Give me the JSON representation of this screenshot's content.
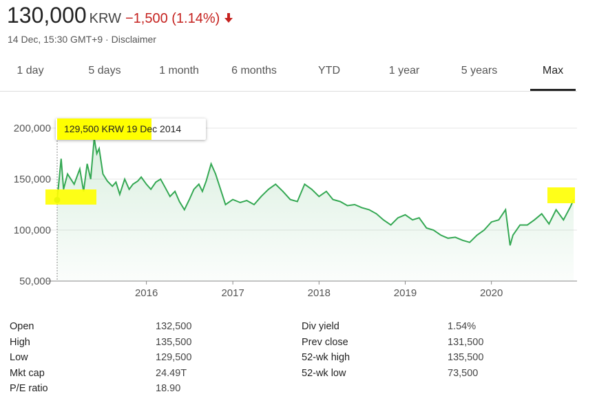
{
  "header": {
    "price": "130,000",
    "currency": "KRW",
    "change": "−1,500 (1.14%)",
    "timestamp": "14 Dec, 15:30 GMT+9",
    "separator": "·",
    "disclaimer": "Disclaimer",
    "down_color": "#c5221f"
  },
  "tabs": [
    {
      "label": "1 day"
    },
    {
      "label": "5 days"
    },
    {
      "label": "1 month"
    },
    {
      "label": "6 months"
    },
    {
      "label": "YTD"
    },
    {
      "label": "1 year"
    },
    {
      "label": "5 years"
    },
    {
      "label": "Max",
      "active": true
    }
  ],
  "tooltip": {
    "text": "129,500 KRW  19 Dec 2014"
  },
  "chart_data": {
    "type": "area",
    "line_color": "#34a853",
    "y_ticks": [
      "200,000",
      "150,000",
      "100,000",
      "50,000"
    ],
    "x_ticks": [
      "2016",
      "2017",
      "2018",
      "2019",
      "2020"
    ],
    "ylim": [
      50000,
      200000
    ],
    "grid": true,
    "x": [
      "2014-12-19",
      "2015-01-05",
      "2015-01-15",
      "2015-02-01",
      "2015-03-01",
      "2015-03-25",
      "2015-04-10",
      "2015-04-25",
      "2015-05-10",
      "2015-05-25",
      "2015-06-05",
      "2015-06-15",
      "2015-07-01",
      "2015-07-20",
      "2015-08-10",
      "2015-08-25",
      "2015-09-10",
      "2015-10-01",
      "2015-10-20",
      "2015-11-05",
      "2015-11-25",
      "2015-12-10",
      "2016-01-01",
      "2016-01-20",
      "2016-02-10",
      "2016-03-01",
      "2016-03-20",
      "2016-04-10",
      "2016-05-01",
      "2016-05-20",
      "2016-06-10",
      "2016-07-01",
      "2016-07-20",
      "2016-08-10",
      "2016-08-25",
      "2016-09-10",
      "2016-10-01",
      "2016-10-20",
      "2016-11-10",
      "2016-12-01",
      "2017-01-01",
      "2017-02-01",
      "2017-03-01",
      "2017-04-01",
      "2017-05-01",
      "2017-06-01",
      "2017-07-01",
      "2017-08-01",
      "2017-09-01",
      "2017-10-01",
      "2017-11-01",
      "2017-12-01",
      "2018-01-01",
      "2018-02-01",
      "2018-03-01",
      "2018-04-01",
      "2018-05-01",
      "2018-06-01",
      "2018-07-01",
      "2018-08-01",
      "2018-09-01",
      "2018-10-01",
      "2018-11-01",
      "2018-12-01",
      "2019-01-01",
      "2019-02-01",
      "2019-03-01",
      "2019-04-01",
      "2019-05-01",
      "2019-06-01",
      "2019-07-01",
      "2019-08-01",
      "2019-09-01",
      "2019-10-01",
      "2019-11-01",
      "2019-12-01",
      "2020-01-01",
      "2020-02-01",
      "2020-03-01",
      "2020-03-20",
      "2020-04-01",
      "2020-05-01",
      "2020-06-01",
      "2020-07-01",
      "2020-08-01",
      "2020-09-01",
      "2020-10-01",
      "2020-11-01",
      "2020-12-01",
      "2020-12-14"
    ],
    "values": [
      129500,
      170000,
      140000,
      155000,
      145000,
      160000,
      138000,
      165000,
      150000,
      190000,
      175000,
      180000,
      155000,
      148000,
      143000,
      147000,
      135000,
      150000,
      140000,
      145000,
      148000,
      152000,
      145000,
      140000,
      147000,
      150000,
      142000,
      133000,
      138000,
      128000,
      120000,
      130000,
      140000,
      145000,
      138000,
      148000,
      165000,
      155000,
      140000,
      125000,
      130000,
      127000,
      129000,
      125000,
      133000,
      140000,
      145000,
      138000,
      130000,
      128000,
      145000,
      140000,
      133000,
      138000,
      130000,
      128000,
      124000,
      125000,
      122000,
      120000,
      116000,
      110000,
      105000,
      112000,
      115000,
      110000,
      112000,
      102000,
      100000,
      95000,
      92000,
      93000,
      90000,
      88000,
      95000,
      100000,
      108000,
      110000,
      120000,
      85000,
      95000,
      105000,
      105000,
      110000,
      116000,
      106000,
      120000,
      110000,
      123000,
      130000
    ]
  },
  "stats": {
    "left": [
      {
        "label": "Open",
        "value": "132,500"
      },
      {
        "label": "High",
        "value": "135,500"
      },
      {
        "label": "Low",
        "value": "129,500"
      },
      {
        "label": "Mkt cap",
        "value": "24.49T"
      },
      {
        "label": "P/E ratio",
        "value": "18.90"
      }
    ],
    "right": [
      {
        "label": "Div yield",
        "value": "1.54%"
      },
      {
        "label": "Prev close",
        "value": "131,500"
      },
      {
        "label": "52-wk high",
        "value": "135,500"
      },
      {
        "label": "52-wk low",
        "value": "73,500"
      }
    ]
  }
}
